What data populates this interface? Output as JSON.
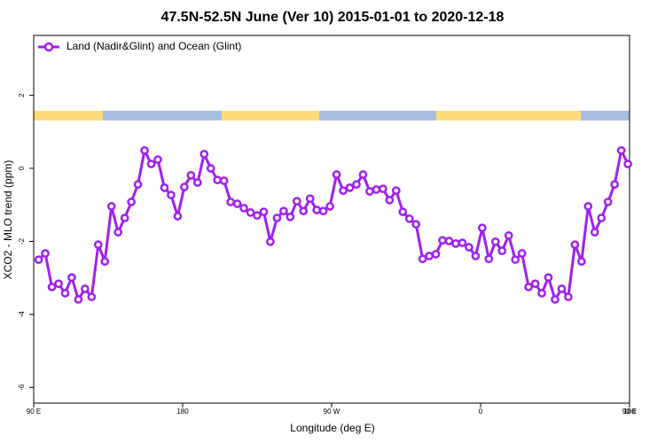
{
  "chart_data": {
    "type": "line",
    "title": "47.5N-52.5N June (Ver 10)   2015-01-01 to 2020-12-18",
    "xlabel": "Longitude (deg E)",
    "ylabel": "XCO2 - MLO trend (ppm)",
    "x": [
      93,
      97,
      101,
      105,
      109,
      113,
      117,
      121,
      125,
      129,
      133,
      137,
      141,
      145,
      149,
      153,
      157,
      161,
      165,
      169,
      173,
      177,
      181,
      185,
      189,
      193,
      197,
      201,
      205,
      209,
      213,
      217,
      221,
      225,
      229,
      233,
      237,
      241,
      245,
      249,
      253,
      257,
      261,
      265,
      269,
      273,
      277,
      281,
      285,
      289,
      293,
      297,
      301,
      305,
      309,
      313,
      317,
      321,
      325,
      329,
      333,
      337,
      341,
      345,
      349,
      353,
      357,
      361,
      365,
      369,
      373,
      377,
      381,
      385,
      389,
      393,
      397,
      401,
      405,
      409,
      413,
      417,
      421,
      425,
      429,
      433,
      437,
      441,
      445,
      449
    ],
    "series": [
      {
        "name": "Land (Nadir&Glint) and Ocean (Glint)",
        "color": "#a020f0",
        "values": [
          -2.5,
          -2.33,
          -3.25,
          -3.16,
          -3.42,
          -2.99,
          -3.59,
          -3.3,
          -3.52,
          -2.09,
          -2.55,
          -1.04,
          -1.75,
          -1.36,
          -0.92,
          -0.44,
          0.49,
          0.12,
          0.24,
          -0.53,
          -0.73,
          -1.31,
          -0.51,
          -0.19,
          -0.39,
          0.39,
          0,
          -0.32,
          -0.34,
          -0.92,
          -0.97,
          -1.09,
          -1.21,
          -1.29,
          -1.19,
          -2.01,
          -1.36,
          -1.17,
          -1.33,
          -0.9,
          -1.17,
          -0.83,
          -1.14,
          -1.17,
          -1.04,
          -0.17,
          -0.61,
          -0.53,
          -0.44,
          -0.17,
          -0.63,
          -0.58,
          -0.56,
          -0.87,
          -0.61,
          -1.19,
          -1.38,
          -1.53,
          -2.48,
          -2.4,
          -2.35,
          -1.97,
          -1.99,
          -2.06,
          -2.04,
          -2.16,
          -2.4,
          -1.63,
          -2.48,
          -2.01,
          -2.26,
          -1.84,
          -2.5,
          -2.33,
          -3.25,
          -3.16,
          -3.42,
          -2.99,
          -3.59,
          -3.3,
          -3.52,
          -2.09,
          -2.55,
          -1.04,
          -1.75,
          -1.36,
          -0.92,
          -0.44,
          0.49,
          0.12
        ]
      }
    ],
    "xlim": [
      90,
      450
    ],
    "xticks": [
      {
        "value": 90,
        "label": "90 E"
      },
      180,
      {
        "value": 270,
        "label": "90 W"
      },
      {
        "value": 360,
        "label": "0"
      },
      {
        "value": 450,
        "label": "90 E"
      },
      {
        "value": 540,
        "label": "180"
      }
    ],
    "ylim": [
      -6.43,
      3.64
    ],
    "yticks": [
      -6,
      -4,
      -2,
      0,
      2
    ],
    "legend": "top-left"
  }
}
